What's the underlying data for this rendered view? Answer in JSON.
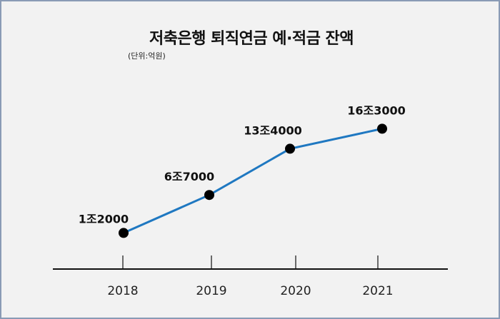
{
  "chart_data": {
    "type": "line",
    "title": "저축은행 퇴직연금 예·적금 잔액",
    "subtitle": "(단위:억원)",
    "categories": [
      "2018",
      "2019",
      "2020",
      "2021"
    ],
    "values": [
      12000,
      67000,
      134000,
      163000
    ],
    "data_labels": [
      "1조2000",
      "6조7000",
      "13조4000",
      "16조3000"
    ],
    "xlabel": "",
    "ylabel": "",
    "ylim": [
      0,
      200000
    ],
    "grid": false,
    "line_color": "#1f78c1",
    "marker_color": "#000000"
  }
}
